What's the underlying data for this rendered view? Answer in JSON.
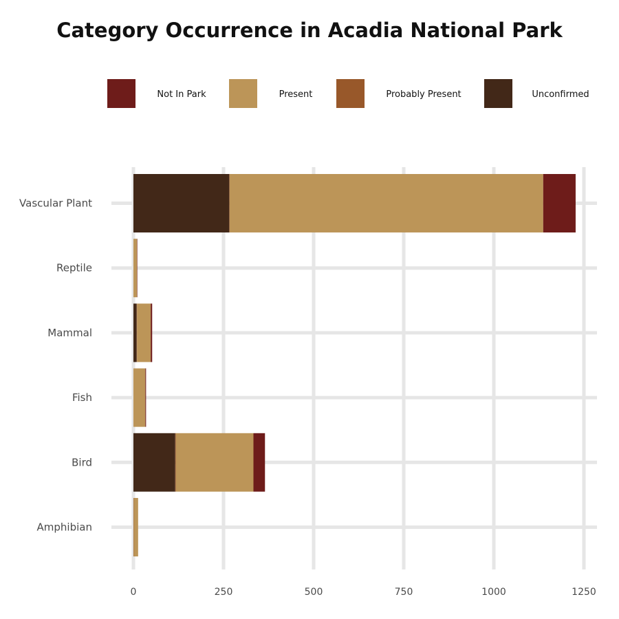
{
  "chart_data": {
    "type": "bar",
    "orientation": "horizontal",
    "stacked": true,
    "title": "Category Occurrence in Acadia National Park",
    "xlabel": "",
    "ylabel": "",
    "legend_position": "top",
    "grid": true,
    "xlim": [
      0,
      1250
    ],
    "xticks": [
      0,
      250,
      500,
      750,
      1000,
      1250
    ],
    "xtick_labels": [
      "0",
      "250",
      "500",
      "750",
      "1000",
      "1250"
    ],
    "categories": [
      "Vascular Plant",
      "Reptile",
      "Mammal",
      "Fish",
      "Bird",
      "Amphibian"
    ],
    "legend": [
      "Not In Park",
      "Present",
      "Probably Present",
      "Unconfirmed"
    ],
    "stack_order": [
      "Unconfirmed",
      "Probably Present",
      "Present",
      "Not In Park"
    ],
    "series": [
      {
        "name": "Not In Park",
        "color": "#6e1c1a",
        "values": [
          90,
          1,
          4,
          2,
          32,
          0
        ]
      },
      {
        "name": "Present",
        "color": "#bc9558",
        "values": [
          870,
          10,
          38,
          33,
          215,
          12
        ]
      },
      {
        "name": "Probably Present",
        "color": "#98582a",
        "values": [
          1,
          0,
          1,
          0,
          2,
          1
        ]
      },
      {
        "name": "Unconfirmed",
        "color": "#422818",
        "values": [
          266,
          0,
          9,
          0,
          116,
          0
        ]
      }
    ]
  }
}
